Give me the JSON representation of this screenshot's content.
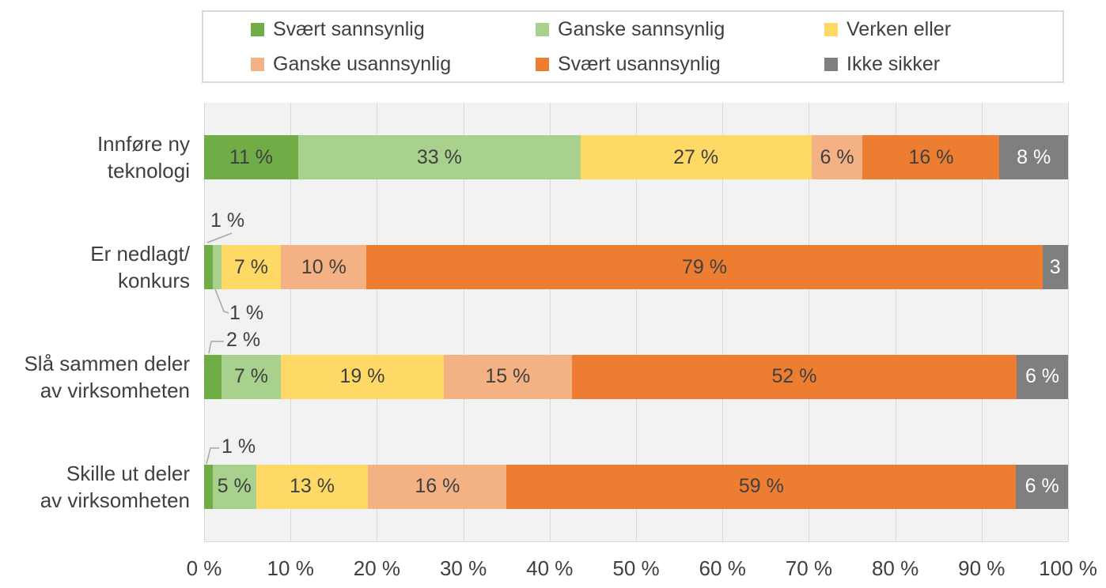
{
  "chart_data": {
    "type": "bar",
    "variant": "horizontal-stacked",
    "title": "",
    "xlabel": "",
    "ylabel": "",
    "xlim": [
      0,
      100
    ],
    "grid": true,
    "legend_position": "top",
    "x_ticks": [
      "0 %",
      "10 %",
      "20 %",
      "30 %",
      "40 %",
      "50 %",
      "60 %",
      "70 %",
      "80 %",
      "90 %",
      "100 %"
    ],
    "categories": [
      {
        "label_lines": [
          "Innføre ny",
          "teknologi"
        ]
      },
      {
        "label_lines": [
          "Er nedlagt/",
          "konkurs"
        ]
      },
      {
        "label_lines": [
          "Slå sammen deler",
          "av virksomheten"
        ]
      },
      {
        "label_lines": [
          "Skille ut deler",
          "av virksomheten"
        ]
      }
    ],
    "series": [
      {
        "name": "Svært sannsynlig",
        "color": "#70AD47",
        "values": [
          11,
          1,
          2,
          1
        ]
      },
      {
        "name": "Ganske sannsynlig",
        "color": "#A9D18E",
        "values": [
          33,
          1,
          7,
          5
        ]
      },
      {
        "name": "Verken eller",
        "color": "#FFD966",
        "values": [
          27,
          7,
          19,
          13
        ]
      },
      {
        "name": "Ganske usannsynlig",
        "color": "#F4B183",
        "values": [
          6,
          10,
          15,
          16
        ]
      },
      {
        "name": "Svært usannsynlig",
        "color": "#ED7D31",
        "values": [
          16,
          79,
          52,
          59
        ]
      },
      {
        "name": "Ikke sikker",
        "color": "#7F7F7F",
        "values": [
          8,
          3,
          6,
          6
        ]
      }
    ],
    "inside_labels": [
      [
        "11 %",
        "33 %",
        "27 %",
        "6 %",
        "16 %",
        "8 %"
      ],
      [
        null,
        null,
        "7 %",
        "10 %",
        "79 %",
        "3"
      ],
      [
        null,
        "7 %",
        "19 %",
        "15 %",
        "52 %",
        "6 %"
      ],
      [
        null,
        "5 %",
        "13 %",
        "16 %",
        "59 %",
        "6 %"
      ]
    ],
    "callouts": [
      {
        "row": 1,
        "series": 0,
        "text": "1 %",
        "placement": "above"
      },
      {
        "row": 1,
        "series": 1,
        "text": "1 %",
        "placement": "below"
      },
      {
        "row": 2,
        "series": 0,
        "text": "2 %",
        "placement": "above"
      },
      {
        "row": 3,
        "series": 0,
        "text": "1 %",
        "placement": "above"
      }
    ]
  },
  "colors": {
    "text": "#404040",
    "label_on_gray": "#FFFFFF",
    "plot_bg": "#F2F2F2",
    "grid": "#D9D9D9",
    "legend_border": "#D9D9D9",
    "callout_line": "#A6A6A6"
  }
}
